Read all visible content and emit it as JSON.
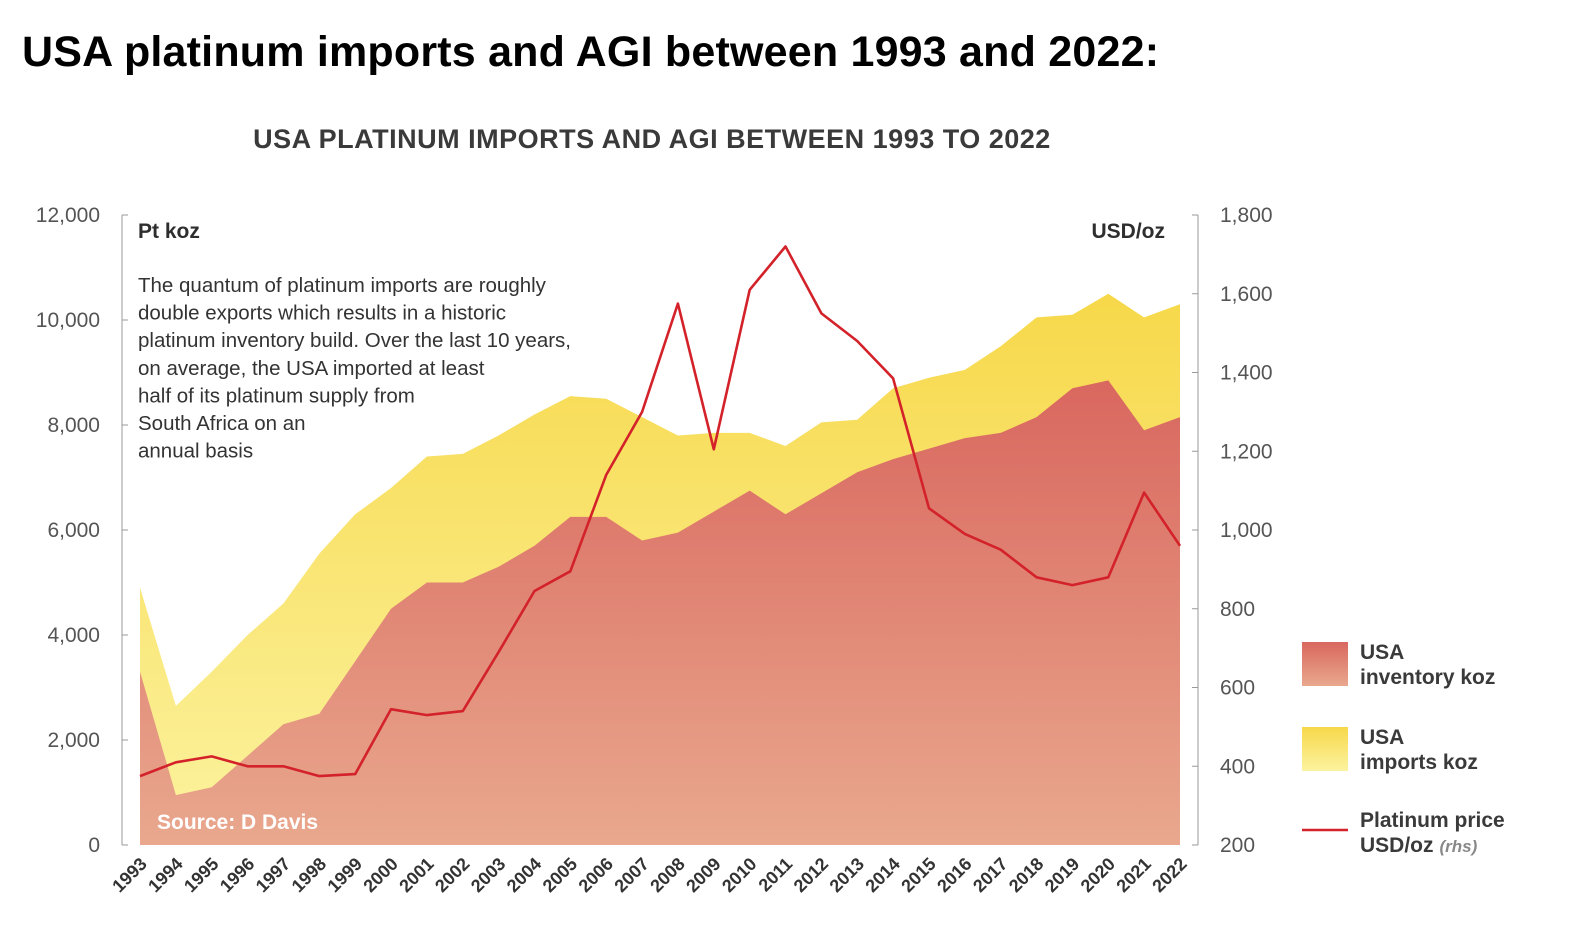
{
  "page": {
    "title": "USA platinum imports and AGI between 1993 and 2022:"
  },
  "chart_data": {
    "type": "area",
    "title": "USA PLATINUM IMPORTS AND AGI BETWEEN 1993 TO 2022",
    "left_axis_label": "Pt koz",
    "right_axis_label": "USD/oz",
    "left_ylim": [
      0,
      12000
    ],
    "left_ticks": [
      "0",
      "2,000",
      "4,000",
      "6,000",
      "8,000",
      "10,000",
      "12,000"
    ],
    "right_ylim": [
      200,
      1800
    ],
    "right_ticks": [
      "200",
      "400",
      "600",
      "800",
      "1,000",
      "1,200",
      "1,400",
      "1,600",
      "1,800"
    ],
    "categories": [
      "1993",
      "1994",
      "1995",
      "1996",
      "1997",
      "1998",
      "1999",
      "2000",
      "2001",
      "2002",
      "2003",
      "2004",
      "2005",
      "2006",
      "2007",
      "2008",
      "2009",
      "2010",
      "2011",
      "2012",
      "2013",
      "2014",
      "2015",
      "2016",
      "2017",
      "2018",
      "2019",
      "2020",
      "2021",
      "2022"
    ],
    "series": [
      {
        "name": "USA inventory koz",
        "kind": "area",
        "axis": "left",
        "color_top": "#d9675f",
        "color_bottom": "#e9a88e",
        "values": [
          3300,
          950,
          1100,
          1700,
          2300,
          2500,
          3500,
          4500,
          5000,
          5000,
          5300,
          5700,
          6250,
          6250,
          5800,
          5950,
          6350,
          6750,
          6300,
          6700,
          7100,
          7350,
          7550,
          7750,
          7850,
          8150,
          8700,
          8850,
          7900,
          8150
        ]
      },
      {
        "name": "USA imports koz",
        "kind": "area",
        "axis": "left",
        "color_top": "#f7d84a",
        "color_bottom": "#fcf3a0",
        "values": [
          4900,
          2650,
          3300,
          4000,
          4600,
          5550,
          6300,
          6800,
          7400,
          7450,
          7800,
          8200,
          8550,
          8500,
          8150,
          7800,
          7850,
          7850,
          7600,
          8050,
          8100,
          8700,
          8900,
          9050,
          9500,
          10050,
          10100,
          10500,
          10050,
          10300
        ]
      },
      {
        "name": "Platinum price USD/oz",
        "kind": "line",
        "axis": "right",
        "color": "#d3222a",
        "values": [
          375,
          410,
          425,
          400,
          400,
          375,
          380,
          545,
          530,
          540,
          690,
          845,
          895,
          1140,
          1300,
          1575,
          1205,
          1610,
          1720,
          1550,
          1480,
          1385,
          1055,
          990,
          950,
          880,
          860,
          880,
          1095,
          960
        ]
      }
    ],
    "annotation": [
      "The quantum of platinum imports are roughly",
      "double exports which results in a historic",
      "platinum inventory build. Over the last 10 years,",
      "on average, the USA imported at least",
      "half of its platinum supply from",
      "South Africa on an",
      "annual basis"
    ],
    "source": "Source: D Davis",
    "legend": [
      {
        "label_lines": [
          "USA",
          "inventory koz"
        ],
        "swatch": "area-red"
      },
      {
        "label_lines": [
          "USA",
          "imports koz"
        ],
        "swatch": "area-yellow"
      },
      {
        "label_lines": [
          "Platinum price",
          "USD/oz"
        ],
        "suffix": "(rhs)",
        "swatch": "line-red"
      }
    ]
  }
}
